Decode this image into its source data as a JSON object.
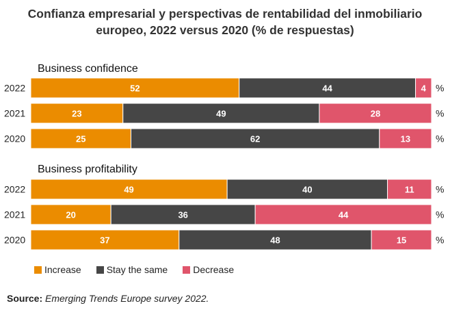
{
  "title_line1": "Confianza empresarial y perspectivas de rentabilidad del inmobiliario",
  "title_line2": "europeo, 2022 versus 2020 (% de respuestas)",
  "legend": [
    {
      "label": "Increase",
      "color": "#eb8c00"
    },
    {
      "label": "Stay the same",
      "color": "#464646"
    },
    {
      "label": "Decrease",
      "color": "#e0556b"
    }
  ],
  "source_label": "Source:",
  "source_text": "Emerging Trends Europe survey 2022.",
  "chart_data": [
    {
      "type": "bar",
      "orientation": "horizontal",
      "stacked": true,
      "title": "Business confidence",
      "categories": [
        "2022",
        "2021",
        "2020"
      ],
      "unit": "%",
      "series": [
        {
          "name": "Increase",
          "values": [
            52,
            23,
            25
          ],
          "color": "#eb8c00"
        },
        {
          "name": "Stay the same",
          "values": [
            44,
            49,
            62
          ],
          "color": "#464646"
        },
        {
          "name": "Decrease",
          "values": [
            4,
            28,
            13
          ],
          "color": "#e0556b"
        }
      ]
    },
    {
      "type": "bar",
      "orientation": "horizontal",
      "stacked": true,
      "title": "Business profitability",
      "categories": [
        "2022",
        "2021",
        "2020"
      ],
      "unit": "%",
      "series": [
        {
          "name": "Increase",
          "values": [
            49,
            20,
            37
          ],
          "color": "#eb8c00"
        },
        {
          "name": "Stay the same",
          "values": [
            40,
            36,
            48
          ],
          "color": "#464646"
        },
        {
          "name": "Decrease",
          "values": [
            11,
            44,
            15
          ],
          "color": "#e0556b"
        }
      ]
    }
  ]
}
